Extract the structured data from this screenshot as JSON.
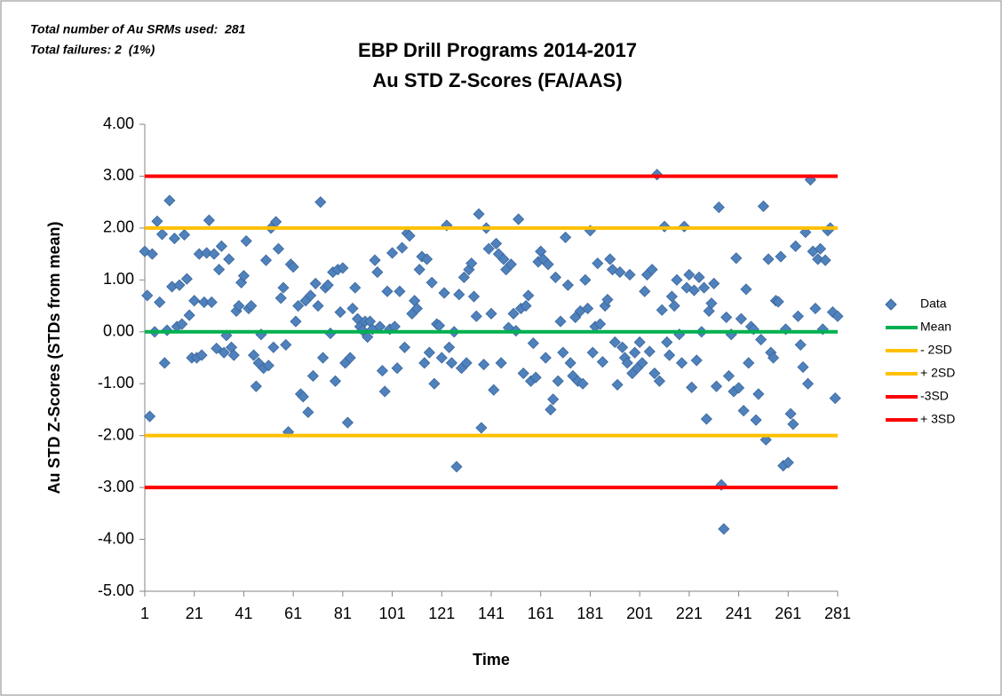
{
  "chart_data": {
    "type": "scatter",
    "title": [
      "EBP Drill Programs 2014-2017",
      "Au STD Z-Scores (FA/AAS)"
    ],
    "annotations": [
      "Total number of Au SRMs used:  281",
      "Total failures: 2  (1%)"
    ],
    "x_label": "Time",
    "y_label": "Au STD Z-Scores (STDs from mean)",
    "xlim": [
      1,
      281
    ],
    "xticks": [
      1,
      21,
      41,
      61,
      81,
      101,
      121,
      141,
      161,
      181,
      201,
      221,
      241,
      261,
      281
    ],
    "ylim": [
      -5,
      4
    ],
    "yticks": [
      {
        "value": -5,
        "label": "-5.00"
      },
      {
        "value": -4,
        "label": "-4.00"
      },
      {
        "value": -3,
        "label": "-3.00"
      },
      {
        "value": -2,
        "label": "-2.00"
      },
      {
        "value": -1,
        "label": "-1.00"
      },
      {
        "value": 0,
        "label": "0.00"
      },
      {
        "value": 1,
        "label": "1.00"
      },
      {
        "value": 2,
        "label": "2.00"
      },
      {
        "value": 3,
        "label": "3.00"
      },
      {
        "value": 4,
        "label": "4.00"
      }
    ],
    "legend": "right",
    "series": [
      {
        "name": "Data",
        "color": "#4f81bd",
        "x": [
          1,
          2,
          3,
          4,
          5,
          6,
          7,
          8,
          9,
          10,
          11,
          12,
          13,
          14,
          15,
          16,
          17,
          18,
          19,
          20,
          21,
          22,
          23,
          24,
          25,
          26,
          27,
          28,
          29,
          30,
          31,
          32,
          33,
          34,
          35,
          36,
          37,
          38,
          39,
          40,
          41,
          42,
          43,
          44,
          45,
          46,
          47,
          48,
          49,
          50,
          51,
          52,
          53,
          54,
          55,
          56,
          57,
          58,
          59,
          60,
          61,
          62,
          63,
          64,
          65,
          66,
          67,
          68,
          69,
          70,
          71,
          72,
          73,
          74,
          75,
          76,
          77,
          78,
          79,
          80,
          81,
          82,
          83,
          84,
          85,
          86,
          87,
          88,
          89,
          90,
          91,
          92,
          93,
          94,
          95,
          96,
          97,
          98,
          99,
          100,
          101,
          102,
          103,
          104,
          105,
          106,
          107,
          108,
          109,
          110,
          111,
          112,
          113,
          114,
          115,
          116,
          117,
          118,
          119,
          120,
          121,
          122,
          123,
          124,
          125,
          126,
          127,
          128,
          129,
          130,
          131,
          132,
          133,
          134,
          135,
          136,
          137,
          138,
          139,
          140,
          141,
          142,
          143,
          144,
          145,
          146,
          147,
          148,
          149,
          150,
          151,
          152,
          153,
          154,
          155,
          156,
          157,
          158,
          159,
          160,
          161,
          162,
          163,
          164,
          165,
          166,
          167,
          168,
          169,
          170,
          171,
          172,
          173,
          174,
          175,
          176,
          177,
          178,
          179,
          180,
          181,
          182,
          183,
          184,
          185,
          186,
          187,
          188,
          189,
          190,
          191,
          192,
          193,
          194,
          195,
          196,
          197,
          198,
          199,
          200,
          201,
          202,
          203,
          204,
          205,
          206,
          207,
          208,
          209,
          210,
          211,
          212,
          213,
          214,
          215,
          216,
          217,
          218,
          219,
          220,
          221,
          222,
          223,
          224,
          225,
          226,
          227,
          228,
          229,
          230,
          231,
          232,
          233,
          234,
          235,
          236,
          237,
          238,
          239,
          240,
          241,
          242,
          243,
          244,
          245,
          246,
          247,
          248,
          249,
          250,
          251,
          252,
          253,
          254,
          255,
          256,
          257,
          258,
          259,
          260,
          261,
          262,
          263,
          264,
          265,
          266,
          267,
          268,
          269,
          270,
          271,
          272,
          273,
          274,
          275,
          276,
          277,
          278,
          279,
          280,
          281
        ],
        "values": [
          1.55,
          0.7,
          -1.63,
          1.5,
          0.0,
          2.13,
          0.57,
          1.88,
          -0.6,
          0.03,
          2.53,
          0.87,
          1.8,
          0.1,
          0.9,
          0.15,
          1.87,
          1.02,
          0.32,
          -0.5,
          0.6,
          -0.5,
          1.5,
          -0.45,
          0.57,
          1.52,
          2.15,
          0.57,
          1.5,
          -0.32,
          1.2,
          1.65,
          -0.4,
          -0.07,
          1.4,
          -0.3,
          -0.45,
          0.4,
          0.5,
          0.95,
          1.08,
          1.75,
          0.45,
          0.5,
          -0.45,
          -1.05,
          -0.6,
          -0.05,
          -0.7,
          1.38,
          -0.65,
          2.0,
          -0.3,
          2.12,
          1.6,
          0.65,
          0.85,
          -0.25,
          -1.93,
          1.3,
          1.25,
          0.2,
          0.5,
          -1.2,
          -1.25,
          0.6,
          -1.55,
          0.7,
          -0.85,
          0.93,
          0.5,
          2.5,
          -0.5,
          0.85,
          0.9,
          -0.03,
          1.15,
          -0.95,
          1.2,
          0.38,
          1.23,
          -0.6,
          -1.75,
          -0.5,
          0.45,
          0.85,
          0.25,
          0.1,
          0.03,
          0.2,
          -0.1,
          0.2,
          0.05,
          1.38,
          1.15,
          0.1,
          -0.75,
          -1.15,
          0.78,
          0.05,
          1.52,
          0.1,
          -0.7,
          0.78,
          1.62,
          -0.3,
          1.9,
          1.85,
          0.35,
          0.6,
          0.45,
          1.2,
          1.45,
          -0.6,
          1.4,
          -0.4,
          0.95,
          -1.0,
          0.15,
          0.12,
          -0.5,
          0.75,
          2.05,
          -0.3,
          -0.6,
          0.0,
          -2.6,
          0.72,
          -0.7,
          1.05,
          -0.6,
          1.2,
          1.32,
          0.68,
          0.3,
          2.27,
          -1.85,
          -0.63,
          2.0,
          1.6,
          0.35,
          -1.12,
          1.7,
          1.5,
          -0.6,
          1.4,
          1.2,
          0.08,
          1.3,
          0.35,
          0.02,
          2.17,
          0.45,
          -0.8,
          0.5,
          0.7,
          -0.95,
          -0.22,
          -0.88,
          1.35,
          1.55,
          1.4,
          -0.5,
          1.3,
          -1.5,
          -1.3,
          1.05,
          -0.95,
          0.2,
          -0.4,
          1.82,
          0.9,
          -0.6,
          -0.85,
          0.28,
          -0.95,
          0.4,
          -1.0,
          1.0,
          0.45,
          1.95,
          -0.4,
          0.1,
          1.32,
          0.15,
          -0.58,
          0.5,
          0.62,
          1.4,
          1.2,
          -0.2,
          -1.02,
          1.15,
          -0.3,
          -0.5,
          -0.6,
          1.1,
          -0.8,
          -0.4,
          -0.7,
          -0.2,
          -0.6,
          0.78,
          1.1,
          -0.38,
          1.2,
          -0.8,
          3.03,
          -0.95,
          0.42,
          2.03,
          -0.2,
          -0.45,
          0.68,
          0.5,
          1.0,
          -0.05,
          -0.6,
          2.03,
          0.85,
          1.1,
          -1.07,
          0.8,
          -0.55,
          1.05,
          0.0,
          0.85,
          -1.68,
          0.4,
          0.55,
          0.93,
          -1.05,
          2.4,
          -2.95,
          -3.8,
          0.28,
          -0.85,
          -0.05,
          -1.15,
          1.42,
          -1.08,
          0.25,
          -1.52,
          0.82,
          -0.6,
          0.1,
          0.05,
          -1.7,
          -1.2,
          -0.15,
          2.42,
          -2.08,
          1.4,
          -0.4,
          -0.5,
          0.6,
          0.58,
          1.45,
          -2.58,
          0.05,
          -2.52,
          -1.58,
          -1.78,
          1.65,
          0.3,
          -0.25,
          -0.68,
          1.92,
          -1.0,
          2.93,
          1.55,
          0.45,
          1.4,
          1.6,
          0.05,
          1.38,
          1.95,
          2.0,
          0.38,
          -1.28,
          0.3
        ]
      }
    ],
    "reference_lines": [
      {
        "name": "Mean",
        "value": 0,
        "color": "#00b050"
      },
      {
        "name": "- 2SD",
        "value": -2,
        "color": "#ffc000"
      },
      {
        "name": "+ 2SD",
        "value": 2,
        "color": "#ffc000"
      },
      {
        "name": "-3SD",
        "value": -3,
        "color": "#ff0000"
      },
      {
        "name": "+ 3SD",
        "value": 3,
        "color": "#ff0000"
      }
    ]
  }
}
